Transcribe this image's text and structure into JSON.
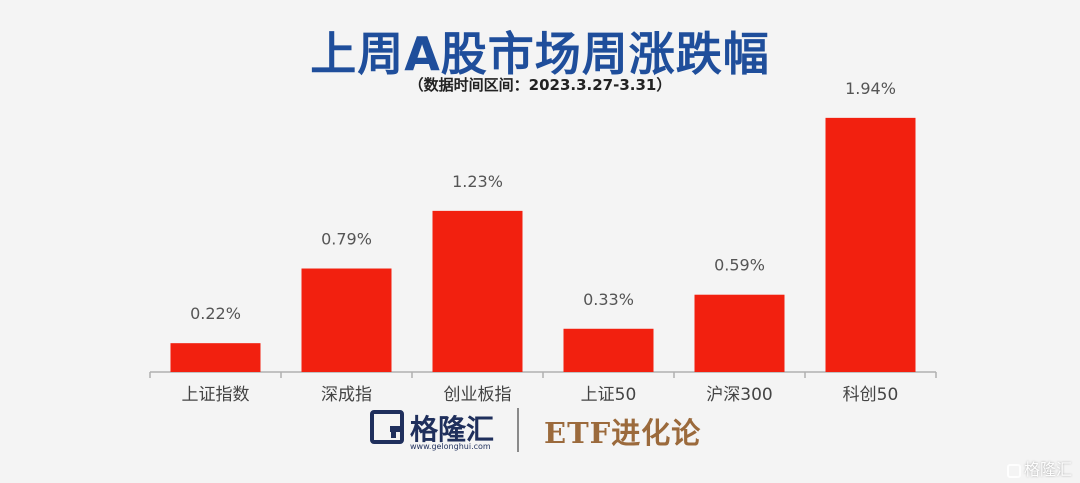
{
  "chart_data": {
    "type": "bar",
    "title": "上周A股市场周涨跌幅",
    "subtitle": "（数据时间区间：2023.3.27-3.31）",
    "categories": [
      "上证指数",
      "深成指",
      "创业板指",
      "上证50",
      "沪深300",
      "科创50"
    ],
    "values": [
      0.22,
      0.79,
      1.23,
      0.33,
      0.59,
      1.94
    ],
    "data_labels": [
      "0.22%",
      "0.79%",
      "1.23%",
      "0.33%",
      "0.59%",
      "1.94%"
    ],
    "unit": "%",
    "ylim": [
      0,
      2.0
    ],
    "grid": false,
    "bar_color": "#f2200f",
    "axis_color": "#b0b0b0"
  },
  "footer": {
    "brand": "格隆汇",
    "brand_url": "www.gelonghui.com",
    "partner": "ETF进化论"
  },
  "watermark": "格隆汇",
  "colors": {
    "title": "#1f4e9b",
    "brand": "#1f2f5c",
    "partner": "#9b6a3c"
  }
}
